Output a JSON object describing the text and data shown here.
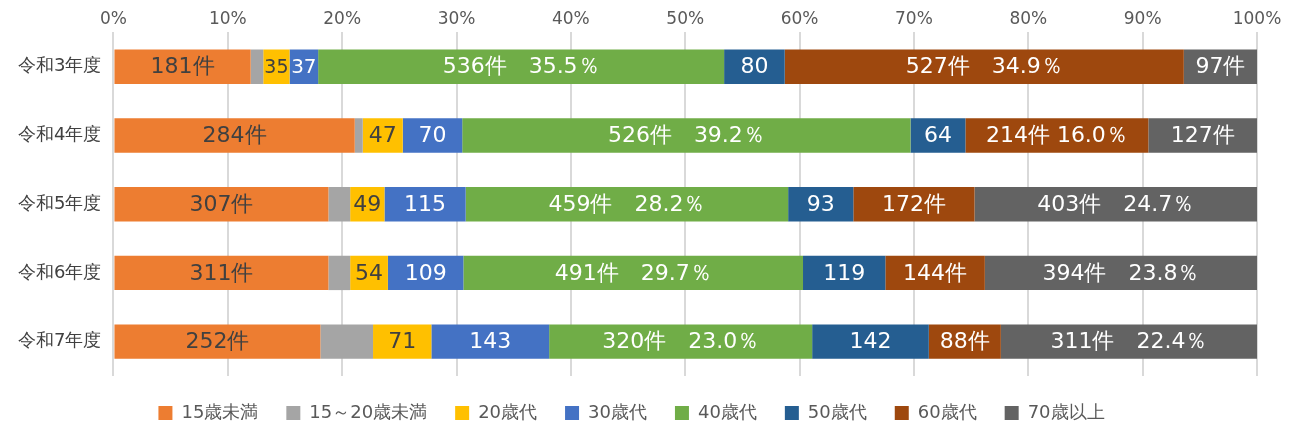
{
  "chart_data": {
    "type": "bar",
    "orientation": "horizontal",
    "stacked": true,
    "categories": [
      "令和3年度",
      "令和4年度",
      "令和5年度",
      "令和6年度",
      "令和7年度"
    ],
    "xlim": [
      0,
      100
    ],
    "xticks": [
      {
        "value": 0,
        "label": "0%"
      },
      {
        "value": 10,
        "label": "10%"
      },
      {
        "value": 20,
        "label": "20%"
      },
      {
        "value": 30,
        "label": "30%"
      },
      {
        "value": 40,
        "label": "40%"
      },
      {
        "value": 50,
        "label": "50%"
      },
      {
        "value": 60,
        "label": "60%"
      },
      {
        "value": 70,
        "label": "70%"
      },
      {
        "value": 80,
        "label": "80%"
      },
      {
        "value": 90,
        "label": "90%"
      },
      {
        "value": 100,
        "label": "100%"
      }
    ],
    "grid": "x",
    "legend": "bottom",
    "series": [
      {
        "name": "15歳未満",
        "color": "#ed7d31",
        "values": [
          12.0,
          21.1,
          18.8,
          18.8,
          18.1
        ]
      },
      {
        "name": "15～20歳未満",
        "color": "#a5a5a5",
        "values": [
          1.1,
          0.7,
          1.9,
          1.9,
          4.6
        ]
      },
      {
        "name": "20歳代",
        "color": "#ffc000",
        "values": [
          2.3,
          3.5,
          3.0,
          3.3,
          5.1
        ]
      },
      {
        "name": "30歳代",
        "color": "#4472c4",
        "values": [
          2.5,
          5.2,
          7.1,
          6.6,
          10.3
        ]
      },
      {
        "name": "40歳代",
        "color": "#70ad47",
        "values": [
          35.5,
          39.2,
          28.2,
          29.7,
          23.0
        ]
      },
      {
        "name": "50歳代",
        "color": "#255e91",
        "values": [
          5.3,
          4.8,
          5.7,
          7.2,
          10.2
        ]
      },
      {
        "name": "60歳代",
        "color": "#9e480e",
        "values": [
          34.9,
          16.0,
          10.6,
          8.7,
          6.3
        ]
      },
      {
        "name": "70歳以上",
        "color": "#636363",
        "values": [
          6.4,
          9.5,
          24.7,
          23.8,
          22.4
        ]
      }
    ],
    "annotations": [
      "181件",
      "35",
      "37",
      "536件　35.5％",
      "80",
      "527件　34.9％",
      "97件",
      "284件",
      "47",
      "70",
      "526件　39.2％",
      "64",
      "214件 16.0％",
      "127件",
      "307件",
      "49",
      "115",
      "459件　28.2％",
      "93",
      "172件",
      "403件　24.7％",
      "311件",
      "54",
      "109",
      "491件　29.7％",
      "119",
      "144件",
      "394件　23.8％",
      "252件",
      "71",
      "143",
      "320件　23.0％",
      "142",
      "88件",
      "311件　22.4％"
    ]
  }
}
